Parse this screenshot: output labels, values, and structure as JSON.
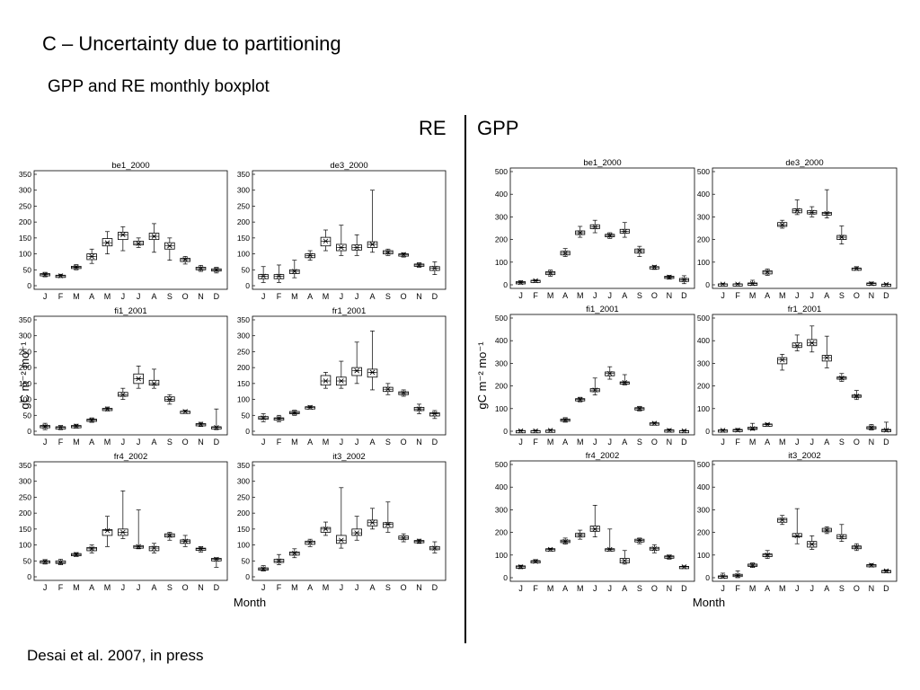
{
  "slide": {
    "title": "C – Uncertainty due to partitioning",
    "subtitle": "GPP and RE monthly boxplot",
    "re_label": "RE",
    "gpp_label": "GPP",
    "citation": "Desai et al. 2007, in press"
  },
  "chart_data": [
    {
      "type": "boxplot",
      "group": "RE",
      "ylabel": "gC m⁻² mo⁻¹",
      "xlabel": "Month",
      "categories": [
        "J",
        "F",
        "M",
        "A",
        "M",
        "J",
        "J",
        "A",
        "S",
        "O",
        "N",
        "D"
      ],
      "ylim": [
        0,
        350
      ],
      "yticks": [
        0,
        50,
        100,
        150,
        200,
        250,
        300,
        350
      ],
      "panels": [
        {
          "title": "be1_2000",
          "boxes": [
            [
              28,
              32,
              35,
              38,
              42
            ],
            [
              26,
              29,
              31,
              33,
              36
            ],
            [
              50,
              54,
              58,
              61,
              66
            ],
            [
              70,
              82,
              92,
              100,
              115
            ],
            [
              100,
              125,
              135,
              148,
              170
            ],
            [
              110,
              145,
              160,
              168,
              185
            ],
            [
              120,
              128,
              133,
              140,
              150
            ],
            [
              105,
              145,
              155,
              165,
              195
            ],
            [
              80,
              115,
              125,
              135,
              150
            ],
            [
              68,
              76,
              82,
              86,
              92
            ],
            [
              45,
              50,
              54,
              58,
              64
            ],
            [
              40,
              48,
              50,
              53,
              58
            ]
          ]
        },
        {
          "title": "de3_2000",
          "boxes": [
            [
              10,
              22,
              30,
              35,
              60
            ],
            [
              10,
              22,
              30,
              35,
              65
            ],
            [
              25,
              38,
              45,
              50,
              80
            ],
            [
              80,
              88,
              95,
              100,
              110
            ],
            [
              110,
              125,
              140,
              152,
              175
            ],
            [
              95,
              110,
              120,
              130,
              190
            ],
            [
              95,
              112,
              120,
              128,
              160
            ],
            [
              105,
              120,
              130,
              138,
              300
            ],
            [
              95,
              100,
              105,
              110,
              115
            ],
            [
              90,
              95,
              98,
              100,
              103
            ],
            [
              58,
              62,
              65,
              68,
              72
            ],
            [
              35,
              48,
              55,
              60,
              75
            ]
          ]
        },
        {
          "title": "fi1_2001",
          "boxes": [
            [
              5,
              12,
              15,
              18,
              25
            ],
            [
              5,
              10,
              12,
              14,
              18
            ],
            [
              10,
              13,
              16,
              18,
              22
            ],
            [
              28,
              32,
              35,
              38,
              42
            ],
            [
              64,
              68,
              70,
              72,
              76
            ],
            [
              100,
              110,
              115,
              122,
              135
            ],
            [
              135,
              150,
              165,
              180,
              205
            ],
            [
              135,
              145,
              150,
              160,
              195
            ],
            [
              85,
              95,
              100,
              108,
              115
            ],
            [
              58,
              60,
              62,
              63,
              66
            ],
            [
              15,
              18,
              22,
              24,
              28
            ],
            [
              5,
              8,
              12,
              14,
              70
            ]
          ]
        },
        {
          "title": "fr1_2001",
          "boxes": [
            [
              30,
              38,
              42,
              46,
              55
            ],
            [
              30,
              36,
              40,
              42,
              50
            ],
            [
              50,
              55,
              58,
              62,
              66
            ],
            [
              70,
              73,
              75,
              77,
              80
            ],
            [
              135,
              145,
              158,
              175,
              185
            ],
            [
              135,
              145,
              158,
              170,
              220
            ],
            [
              150,
              175,
              190,
              200,
              280
            ],
            [
              130,
              170,
              185,
              195,
              315
            ],
            [
              115,
              125,
              132,
              138,
              150
            ],
            [
              110,
              115,
              120,
              124,
              130
            ],
            [
              55,
              65,
              70,
              75,
              85
            ],
            [
              40,
              48,
              55,
              58,
              65
            ]
          ]
        },
        {
          "title": "fr4_2002",
          "boxes": [
            [
              40,
              44,
              48,
              50,
              54
            ],
            [
              38,
              42,
              45,
              50,
              55
            ],
            [
              64,
              67,
              70,
              73,
              76
            ],
            [
              75,
              82,
              88,
              92,
              100
            ],
            [
              95,
              130,
              145,
              148,
              190
            ],
            [
              120,
              130,
              140,
              150,
              270
            ],
            [
              88,
              90,
              95,
              98,
              210
            ],
            [
              75,
              82,
              90,
              95,
              105
            ],
            [
              115,
              125,
              130,
              135,
              140
            ],
            [
              95,
              105,
              112,
              116,
              130
            ],
            [
              78,
              85,
              88,
              90,
              95
            ],
            [
              30,
              50,
              55,
              58,
              60
            ]
          ]
        },
        {
          "title": "it3_2002",
          "boxes": [
            [
              18,
              22,
              25,
              28,
              35
            ],
            [
              38,
              45,
              50,
              55,
              70
            ],
            [
              60,
              68,
              74,
              78,
              88
            ],
            [
              95,
              102,
              108,
              112,
              118
            ],
            [
              130,
              140,
              150,
              155,
              172
            ],
            [
              90,
              105,
              115,
              130,
              280
            ],
            [
              115,
              130,
              138,
              150,
              190
            ],
            [
              150,
              160,
              170,
              178,
              215
            ],
            [
              140,
              155,
              165,
              170,
              235
            ],
            [
              110,
              118,
              122,
              128,
              135
            ],
            [
              105,
              108,
              112,
              114,
              118
            ],
            [
              75,
              85,
              90,
              95,
              110
            ]
          ]
        }
      ]
    },
    {
      "type": "boxplot",
      "group": "GPP",
      "ylabel": "gC m⁻² mo⁻¹",
      "xlabel": "Month",
      "categories": [
        "J",
        "F",
        "M",
        "A",
        "M",
        "J",
        "J",
        "A",
        "S",
        "O",
        "N",
        "D"
      ],
      "ylim": [
        0,
        500
      ],
      "yticks": [
        0,
        100,
        200,
        300,
        400,
        500
      ],
      "panels": [
        {
          "title": "be1_2000",
          "boxes": [
            [
              3,
              6,
              10,
              14,
              18
            ],
            [
              14,
              16,
              18,
              20,
              22
            ],
            [
              38,
              45,
              52,
              58,
              65
            ],
            [
              125,
              132,
              140,
              148,
              160
            ],
            [
              210,
              222,
              230,
              238,
              258
            ],
            [
              230,
              248,
              256,
              265,
              285
            ],
            [
              205,
              212,
              218,
              223,
              230
            ],
            [
              210,
              228,
              236,
              245,
              275
            ],
            [
              125,
              140,
              150,
              158,
              170
            ],
            [
              68,
              74,
              78,
              80,
              85
            ],
            [
              25,
              30,
              34,
              38,
              42
            ],
            [
              5,
              15,
              22,
              28,
              40
            ]
          ]
        },
        {
          "title": "de3_2000",
          "boxes": [
            [
              0,
              1,
              3,
              4,
              6
            ],
            [
              0,
              1,
              3,
              4,
              6
            ],
            [
              0,
              3,
              5,
              8,
              20
            ],
            [
              42,
              48,
              56,
              62,
              70
            ],
            [
              250,
              258,
              265,
              275,
              285
            ],
            [
              310,
              318,
              328,
              335,
              375
            ],
            [
              300,
              313,
              320,
              328,
              345
            ],
            [
              295,
              308,
              315,
              320,
              420
            ],
            [
              180,
              200,
              210,
              218,
              260
            ],
            [
              65,
              69,
              72,
              74,
              80
            ],
            [
              0,
              2,
              5,
              8,
              12
            ],
            [
              0,
              1,
              2,
              3,
              5
            ]
          ]
        },
        {
          "title": "fi1_2001",
          "boxes": [
            [
              0,
              1,
              2,
              3,
              5
            ],
            [
              0,
              1,
              2,
              3,
              5
            ],
            [
              0,
              2,
              4,
              5,
              8
            ],
            [
              40,
              45,
              50,
              54,
              60
            ],
            [
              130,
              136,
              140,
              144,
              150
            ],
            [
              160,
              175,
              182,
              188,
              235
            ],
            [
              230,
              245,
              255,
              262,
              285
            ],
            [
              205,
              210,
              215,
              218,
              250
            ],
            [
              90,
              96,
              100,
              104,
              110
            ],
            [
              30,
              33,
              35,
              37,
              40
            ],
            [
              0,
              2,
              4,
              6,
              10
            ],
            [
              0,
              1,
              2,
              3,
              5
            ]
          ]
        },
        {
          "title": "fr1_2001",
          "boxes": [
            [
              0,
              2,
              4,
              6,
              8
            ],
            [
              0,
              3,
              5,
              8,
              12
            ],
            [
              5,
              10,
              12,
              18,
              35
            ],
            [
              25,
              28,
              30,
              32,
              35
            ],
            [
              270,
              298,
              315,
              325,
              340
            ],
            [
              355,
              370,
              378,
              390,
              425
            ],
            [
              350,
              378,
              390,
              405,
              465
            ],
            [
              280,
              310,
              325,
              335,
              420
            ],
            [
              220,
              230,
              235,
              240,
              255
            ],
            [
              140,
              150,
              155,
              160,
              180
            ],
            [
              5,
              12,
              16,
              20,
              30
            ],
            [
              0,
              2,
              5,
              8,
              40
            ]
          ]
        },
        {
          "title": "fr4_2002",
          "boxes": [
            [
              40,
              45,
              48,
              52,
              55
            ],
            [
              65,
              70,
              72,
              75,
              80
            ],
            [
              118,
              122,
              125,
              128,
              130
            ],
            [
              148,
              155,
              160,
              166,
              175
            ],
            [
              170,
              180,
              188,
              196,
              210
            ],
            [
              180,
              205,
              215,
              228,
              320
            ],
            [
              118,
              122,
              125,
              128,
              215
            ],
            [
              60,
              65,
              75,
              85,
              120
            ],
            [
              150,
              158,
              165,
              170,
              175
            ],
            [
              110,
              122,
              128,
              134,
              145
            ],
            [
              82,
              88,
              92,
              96,
              100
            ],
            [
              42,
              45,
              48,
              50,
              52
            ]
          ]
        },
        {
          "title": "it3_2002",
          "boxes": [
            [
              0,
              2,
              5,
              8,
              20
            ],
            [
              0,
              5,
              10,
              15,
              30
            ],
            [
              45,
              50,
              55,
              60,
              65
            ],
            [
              85,
              93,
              100,
              105,
              120
            ],
            [
              235,
              245,
              255,
              262,
              275
            ],
            [
              150,
              180,
              185,
              195,
              305
            ],
            [
              125,
              135,
              148,
              160,
              185
            ],
            [
              195,
              203,
              210,
              218,
              225
            ],
            [
              160,
              172,
              180,
              190,
              235
            ],
            [
              120,
              128,
              135,
              140,
              150
            ],
            [
              48,
              52,
              55,
              58,
              62
            ],
            [
              25,
              28,
              30,
              32,
              35
            ]
          ]
        }
      ]
    }
  ]
}
